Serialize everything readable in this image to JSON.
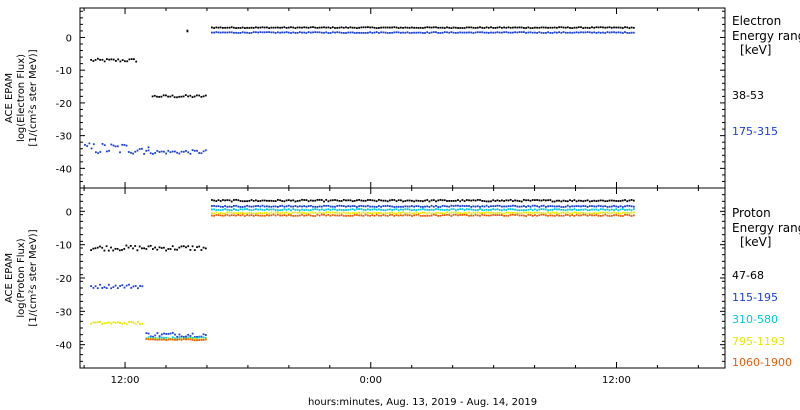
{
  "chart_data": {
    "type": "scatter",
    "xlabel": "hours:minutes, Aug. 13, 2019 - Aug. 14, 2019",
    "x_ticks": [
      "12:00",
      "0:00",
      "12:00"
    ],
    "x_tick_values": [
      12,
      24,
      36
    ],
    "xlim": [
      9.8,
      41.3
    ],
    "panels": [
      {
        "name": "electron-panel",
        "ylabel_lines": [
          "ACE EPAM",
          "log(Electron Flux)",
          "[1/(cm²s ster MeV)]"
        ],
        "ylim": [
          -46,
          9
        ],
        "yticks": [
          0,
          -10,
          -20,
          -30,
          -40
        ],
        "legend_title_lines": [
          "Electron",
          "Energy range",
          "[keV]"
        ],
        "series": [
          {
            "name": "38-53",
            "color": "#000000",
            "segments": [
              {
                "x0": 10.3,
                "x1": 12.5,
                "y": -7,
                "scatter": 0.5
              },
              {
                "x0": 13.3,
                "x1": 15.9,
                "y": -18,
                "scatter": 0.4
              },
              {
                "x0": 15.0,
                "x1": 15.0,
                "y": 2,
                "scatter": 0.2
              },
              {
                "x0": 16.2,
                "x1": 36.8,
                "y": 3,
                "scatter": 0.15
              }
            ]
          },
          {
            "name": "175-315",
            "color": "#1a3fd1",
            "segments": [
              {
                "x0": 10.0,
                "x1": 13.1,
                "y": -34,
                "scatter": 1.8
              },
              {
                "x0": 13.1,
                "x1": 15.9,
                "y": -35,
                "scatter": 0.6
              },
              {
                "x0": 16.2,
                "x1": 36.8,
                "y": 1.5,
                "scatter": 0.15
              }
            ]
          }
        ]
      },
      {
        "name": "proton-panel",
        "ylabel_lines": [
          "ACE EPAM",
          "log(Proton Flux)",
          "[1/(cm²s ster MeV)]"
        ],
        "ylim": [
          -47,
          7
        ],
        "yticks": [
          0,
          -10,
          -20,
          -30,
          -40
        ],
        "legend_title_lines": [
          "Proton",
          "Energy range",
          "[keV]"
        ],
        "series": [
          {
            "name": "47-68",
            "color": "#000000",
            "segments": [
              {
                "x0": 10.3,
                "x1": 15.9,
                "y": -11,
                "scatter": 0.8
              },
              {
                "x0": 16.2,
                "x1": 36.8,
                "y": 3.2,
                "scatter": 0.25
              }
            ]
          },
          {
            "name": "115-195",
            "color": "#1a3fd1",
            "segments": [
              {
                "x0": 10.3,
                "x1": 12.8,
                "y": -22.5,
                "scatter": 0.6
              },
              {
                "x0": 13.0,
                "x1": 15.9,
                "y": -37,
                "scatter": 0.7
              },
              {
                "x0": 16.2,
                "x1": 36.8,
                "y": 1.5,
                "scatter": 0.2
              }
            ]
          },
          {
            "name": "310-580",
            "color": "#00c8d8",
            "segments": [
              {
                "x0": 13.0,
                "x1": 15.9,
                "y": -38,
                "scatter": 0.3
              },
              {
                "x0": 16.2,
                "x1": 36.8,
                "y": 0.5,
                "scatter": 0.2
              }
            ]
          },
          {
            "name": "795-1193",
            "color": "#e6e600",
            "segments": [
              {
                "x0": 10.3,
                "x1": 12.8,
                "y": -33.5,
                "scatter": 0.4
              },
              {
                "x0": 13.0,
                "x1": 15.9,
                "y": -38.3,
                "scatter": 0.2
              },
              {
                "x0": 16.2,
                "x1": 36.8,
                "y": -0.5,
                "scatter": 0.2
              }
            ]
          },
          {
            "name": "1060-1900",
            "color": "#e06010",
            "segments": [
              {
                "x0": 13.0,
                "x1": 15.9,
                "y": -38.5,
                "scatter": 0.2
              },
              {
                "x0": 16.2,
                "x1": 36.8,
                "y": -1.2,
                "scatter": 0.2
              }
            ]
          }
        ]
      }
    ]
  }
}
